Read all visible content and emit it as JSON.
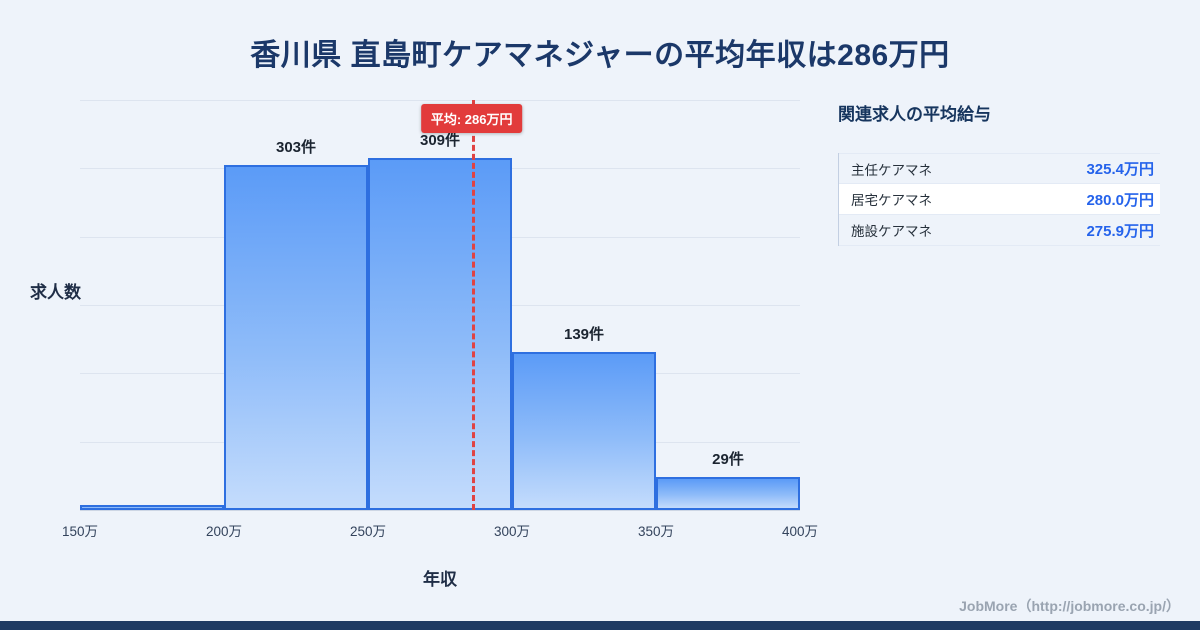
{
  "title": "香川県 直島町ケアマネジャーの平均年収は286万円",
  "chart_data": {
    "type": "bar",
    "title": "香川県 直島町ケアマネジャーの平均年収は286万円",
    "xlabel": "年収",
    "ylabel": "求人数",
    "x_ticks": [
      "150万",
      "200万",
      "250万",
      "300万",
      "350万",
      "400万"
    ],
    "xlim": [
      150,
      400
    ],
    "ylim": [
      0,
      360
    ],
    "bins": [
      [
        150,
        200
      ],
      [
        200,
        250
      ],
      [
        250,
        300
      ],
      [
        300,
        350
      ],
      [
        350,
        400
      ]
    ],
    "values": [
      4,
      303,
      309,
      139,
      29
    ],
    "bar_labels": [
      "",
      "303件",
      "309件",
      "139件",
      "29件"
    ],
    "mean": 286,
    "mean_label": "平均: 286万円",
    "grid": true,
    "legend": "none"
  },
  "side_panel": {
    "title": "関連求人の平均給与",
    "rows": [
      {
        "label": "主任ケアマネ",
        "value": "325.4万円"
      },
      {
        "label": "居宅ケアマネ",
        "value": "280.0万円"
      },
      {
        "label": "施設ケアマネ",
        "value": "275.9万円"
      }
    ]
  },
  "footer": {
    "credit": "JobMore（http://jobmore.co.jp/）"
  },
  "colors": {
    "background": "#eef3fa",
    "title_navy": "#1b3869",
    "bar_fill_top": "#5b9bf7",
    "bar_fill_bottom": "#c4dcfc",
    "bar_border": "#2e6fe0",
    "mean_red": "#e23b3b",
    "value_blue": "#2563eb",
    "bottom_bar_navy": "#1f3b63",
    "credit_gray": "#9aa4b1"
  }
}
